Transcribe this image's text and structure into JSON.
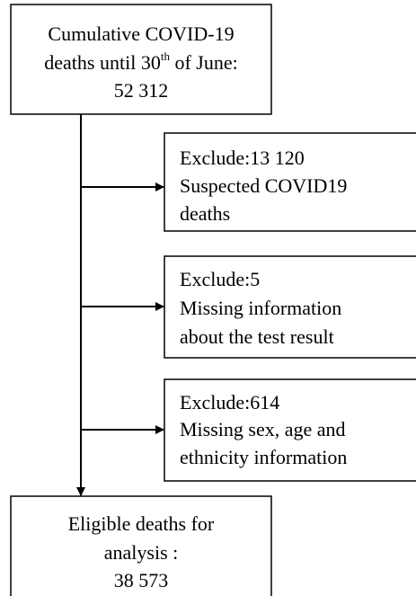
{
  "nodes": [
    {
      "lines": [
        "Cumulative COVID-19",
        [
          "deaths until 30",
          "th",
          " of June:"
        ],
        "52 312"
      ]
    },
    {
      "lines": [
        "Exclude:13 120",
        "Suspected COVID19",
        "deaths"
      ]
    },
    {
      "lines": [
        "Exclude:5",
        "Missing information",
        "about the test result"
      ]
    },
    {
      "lines": [
        "Exclude:614",
        "Missing sex, age and",
        "ethnicity information"
      ]
    },
    {
      "lines": [
        "Eligible deaths for",
        "analysis :",
        "38 573"
      ]
    }
  ]
}
